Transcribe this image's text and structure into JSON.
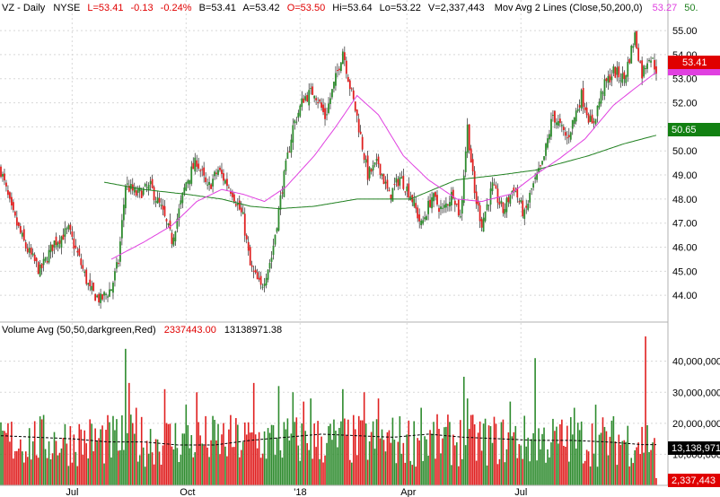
{
  "price_header": {
    "symbol": "VZ - Daily",
    "exchange": "NYSE",
    "last": "L=53.41",
    "change": "-0.13",
    "change_pct": "-0.24%",
    "bid": "B=53.41",
    "ask": "A=53.42",
    "open": "O=53.50",
    "high": "Hi=53.64",
    "low": "Lo=53.22",
    "volume": "V=2,337,443",
    "ma_label": "Mov Avg 2 Lines (Close,50,200,0)",
    "ma50_value": "53.27",
    "ma200_value": "50."
  },
  "volume_header": {
    "label": "Volume Avg (50,50,darkgreen,Red)",
    "value": "2337443.00",
    "avg": "13138971.38"
  },
  "price_badges": {
    "last": "53.41",
    "ma200": "50.65",
    "hidden": "53.00"
  },
  "volume_badges": {
    "avg": "13,138,971",
    "last": "2,337,443"
  },
  "colors": {
    "up": "#2e8b2e",
    "down": "#e02020",
    "ma50": "#e040e0",
    "ma200": "#208020",
    "badge_last": "#e00000",
    "badge_ma200": "#128012",
    "badge_ma50": "#e040e0"
  },
  "chart_data": [
    {
      "type": "candlestick",
      "title": "VZ - Daily",
      "ylim": [
        43.0,
        55.6
      ],
      "y_ticks": [
        "44.00",
        "45.00",
        "46.00",
        "47.00",
        "48.00",
        "49.00",
        "50.00",
        "51.00",
        "52.00",
        "53.00",
        "54.00",
        "55.00"
      ],
      "x_ticks": [
        "Jul",
        "Oct",
        "'18",
        "Apr",
        "Jul"
      ],
      "grid": true,
      "close_anchors": [
        [
          0,
          49.2
        ],
        [
          6,
          47.5
        ],
        [
          14,
          46.0
        ],
        [
          22,
          45.0
        ],
        [
          30,
          46.2
        ],
        [
          38,
          46.7
        ],
        [
          44,
          45.5
        ],
        [
          50,
          44.2
        ],
        [
          56,
          43.8
        ],
        [
          62,
          44.3
        ],
        [
          66,
          45.4
        ],
        [
          70,
          48.6
        ],
        [
          76,
          48.2
        ],
        [
          84,
          48.5
        ],
        [
          90,
          47.6
        ],
        [
          96,
          46.3
        ],
        [
          104,
          48.7
        ],
        [
          110,
          49.6
        ],
        [
          116,
          48.4
        ],
        [
          122,
          49.2
        ],
        [
          130,
          48.3
        ],
        [
          136,
          47.2
        ],
        [
          140,
          45.2
        ],
        [
          146,
          44.3
        ],
        [
          152,
          45.6
        ],
        [
          158,
          48.5
        ],
        [
          164,
          51.0
        ],
        [
          170,
          52.2
        ],
        [
          176,
          52.5
        ],
        [
          182,
          51.4
        ],
        [
          188,
          53.0
        ],
        [
          192,
          54.2
        ],
        [
          196,
          52.7
        ],
        [
          200,
          51.4
        ],
        [
          206,
          49.0
        ],
        [
          212,
          49.5
        ],
        [
          218,
          48.1
        ],
        [
          224,
          48.9
        ],
        [
          230,
          48.2
        ],
        [
          236,
          46.9
        ],
        [
          242,
          48.1
        ],
        [
          248,
          47.5
        ],
        [
          254,
          48.3
        ],
        [
          258,
          47.2
        ],
        [
          262,
          51.0
        ],
        [
          266,
          48.2
        ],
        [
          270,
          47.0
        ],
        [
          276,
          48.5
        ],
        [
          282,
          47.5
        ],
        [
          288,
          48.5
        ],
        [
          294,
          47.3
        ],
        [
          298,
          48.4
        ],
        [
          304,
          49.4
        ],
        [
          310,
          51.5
        ],
        [
          318,
          50.5
        ],
        [
          326,
          52.3
        ],
        [
          332,
          51.0
        ],
        [
          338,
          52.6
        ],
        [
          344,
          53.3
        ],
        [
          350,
          53.0
        ],
        [
          356,
          54.8
        ],
        [
          360,
          53.2
        ],
        [
          364,
          54.0
        ],
        [
          368,
          53.41
        ]
      ],
      "ma50_anchors": [
        [
          62,
          45.5
        ],
        [
          80,
          46.2
        ],
        [
          96,
          46.9
        ],
        [
          110,
          47.9
        ],
        [
          124,
          48.4
        ],
        [
          136,
          48.2
        ],
        [
          148,
          47.9
        ],
        [
          160,
          48.5
        ],
        [
          176,
          49.8
        ],
        [
          188,
          51.0
        ],
        [
          200,
          52.3
        ],
        [
          212,
          51.5
        ],
        [
          226,
          49.8
        ],
        [
          240,
          48.8
        ],
        [
          256,
          48.0
        ],
        [
          270,
          47.9
        ],
        [
          286,
          48.2
        ],
        [
          300,
          49.0
        ],
        [
          314,
          49.7
        ],
        [
          328,
          50.5
        ],
        [
          344,
          51.9
        ],
        [
          356,
          52.6
        ],
        [
          368,
          53.27
        ]
      ],
      "ma200_anchors": [
        [
          58,
          48.7
        ],
        [
          80,
          48.4
        ],
        [
          104,
          48.2
        ],
        [
          124,
          48.0
        ],
        [
          140,
          47.7
        ],
        [
          156,
          47.6
        ],
        [
          176,
          47.7
        ],
        [
          200,
          48.0
        ],
        [
          230,
          48.0
        ],
        [
          256,
          48.8
        ],
        [
          280,
          49.0
        ],
        [
          300,
          49.2
        ],
        [
          330,
          49.8
        ],
        [
          350,
          50.3
        ],
        [
          368,
          50.65
        ]
      ]
    },
    {
      "type": "bar",
      "title": "Volume Avg (50,50,darkgreen,Red)",
      "ylim": [
        0,
        48000000
      ],
      "y_ticks": [
        "10,000,000",
        "20,000,000",
        "30,000,000",
        "40,000,000"
      ],
      "spikes": [
        [
          70,
          44000000
        ],
        [
          72,
          33000000
        ],
        [
          76,
          25000000
        ],
        [
          92,
          31000000
        ],
        [
          104,
          26000000
        ],
        [
          110,
          30000000
        ],
        [
          142,
          33000000
        ],
        [
          156,
          32000000
        ],
        [
          164,
          30000000
        ],
        [
          170,
          27000000
        ],
        [
          174,
          28000000
        ],
        [
          192,
          31000000
        ],
        [
          204,
          30000000
        ],
        [
          212,
          28000000
        ],
        [
          236,
          25000000
        ],
        [
          260,
          35000000
        ],
        [
          262,
          28000000
        ],
        [
          286,
          27000000
        ],
        [
          300,
          41000000
        ],
        [
          322,
          25000000
        ],
        [
          334,
          26000000
        ],
        [
          362,
          48000000
        ]
      ],
      "avg_anchors": [
        [
          0,
          16000000
        ],
        [
          40,
          15000000
        ],
        [
          60,
          14000000
        ],
        [
          80,
          14000000
        ],
        [
          100,
          13000000
        ],
        [
          120,
          13000000
        ],
        [
          140,
          14500000
        ],
        [
          160,
          15500000
        ],
        [
          180,
          16500000
        ],
        [
          200,
          16000000
        ],
        [
          220,
          15500000
        ],
        [
          240,
          16500000
        ],
        [
          260,
          15500000
        ],
        [
          280,
          15000000
        ],
        [
          300,
          14500000
        ],
        [
          320,
          14500000
        ],
        [
          340,
          14000000
        ],
        [
          360,
          13138971
        ]
      ]
    }
  ]
}
